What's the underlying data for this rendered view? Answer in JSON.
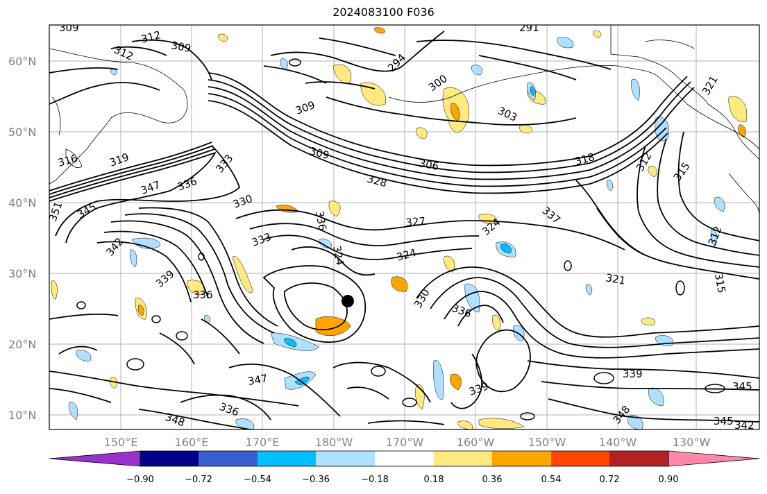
{
  "title": "2024083100 F036",
  "map": {
    "lat_labels": [
      "60°N",
      "50°N",
      "40°N",
      "30°N",
      "20°N",
      "10°N"
    ],
    "lon_labels": [
      "150°E",
      "160°E",
      "170°E",
      "180°W",
      "170°W",
      "160°W",
      "150°W",
      "140°W",
      "130°W"
    ],
    "contour_labels": [
      "309",
      "312",
      "309",
      "312",
      "294",
      "291",
      "300",
      "309",
      "303",
      "309",
      "306",
      "318",
      "321",
      "312",
      "315",
      "316",
      "319",
      "333",
      "347",
      "336",
      "328",
      "330",
      "327",
      "324",
      "345",
      "351",
      "342",
      "339",
      "336",
      "333",
      "336",
      "324",
      "330",
      "336",
      "321",
      "312",
      "315",
      "339",
      "345",
      "347",
      "336",
      "348",
      "348",
      "345",
      "342",
      "324",
      "337",
      "339"
    ],
    "marker": "storm-center"
  },
  "colorbar": {
    "labels": [
      "−0.90",
      "−0.72",
      "−0.54",
      "−0.36",
      "−0.18",
      "0.18",
      "0.36",
      "0.54",
      "0.72",
      "0.90"
    ],
    "colors": [
      "#9932cc",
      "#00008b",
      "#3a5fcd",
      "#00bfff",
      "#afe0ff",
      "#ffffff",
      "#ffea80",
      "#ffa500",
      "#ff4500",
      "#b22222",
      "#ff88aa"
    ]
  }
}
